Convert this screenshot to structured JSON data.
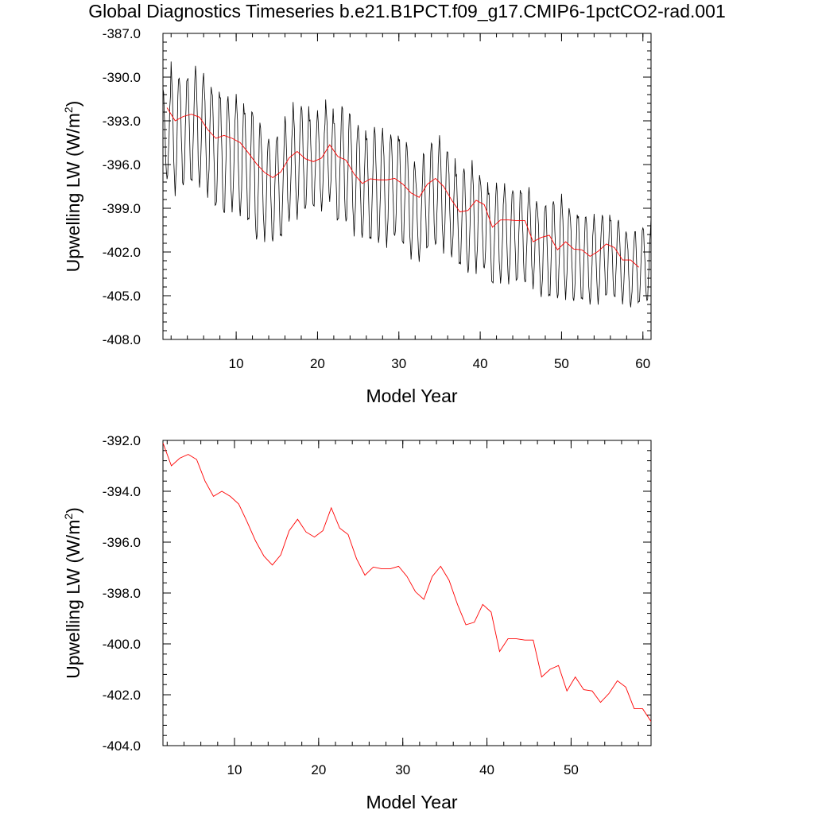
{
  "figure": {
    "title": "Global Diagnostics Timeseries b.e21.B1PCT.f09_g17.CMIP6-1pctCO2-rad.001"
  },
  "colors": {
    "monthly_series": "#000000",
    "annual_series": "#ff0000",
    "frame": "#000000",
    "background": "#ffffff"
  },
  "chart_data": [
    {
      "type": "line",
      "xlabel": "Model Year",
      "ylabel": "Upwelling LW (W/m",
      "ylabel_superscript": "2",
      "ylabel_suffix": ")",
      "xlim": [
        1,
        61
      ],
      "ylim": [
        -408.0,
        -387.0
      ],
      "xticks": [
        10,
        20,
        30,
        40,
        50,
        60
      ],
      "xtick_labels": [
        "10",
        "20",
        "30",
        "40",
        "50",
        "60"
      ],
      "yticks": [
        -408.0,
        -405.0,
        -402.0,
        -399.0,
        -396.0,
        -393.0,
        -390.0,
        -387.0
      ],
      "ytick_labels": [
        "-408.0",
        "-405.0",
        "-402.0",
        "-399.0",
        "-396.0",
        "-393.0",
        "-390.0",
        "-387.0"
      ],
      "grid": false,
      "series": [
        {
          "style": "monthly",
          "color": "#000000",
          "annual_peaks": [
            -390.8,
            -389.3,
            -390.0,
            -389.9,
            -389.4,
            -390.0,
            -390.8,
            -391.2,
            -391.6,
            -391.3,
            -392.2,
            -392.4,
            -393.8,
            -394.2,
            -393.9,
            -392.8,
            -392.0,
            -391.8,
            -392.8,
            -392.5,
            -391.7,
            -392.9,
            -391.9,
            -392.9,
            -393.3,
            -394.0,
            -393.5,
            -393.8,
            -393.8,
            -394.1,
            -395.0,
            -396.5,
            -395.0,
            -394.4,
            -394.3,
            -395.2,
            -396.5,
            -396.3,
            -396.0,
            -397.0,
            -397.8,
            -397.4,
            -397.5,
            -397.6,
            -397.8,
            -397.8,
            -398.9,
            -398.6,
            -398.5,
            -398.3,
            -399.2,
            -399.4,
            -399.7,
            -399.6,
            -399.3,
            -399.7,
            -400.0,
            -400.9,
            -400.4,
            -400.3,
            -399.8
          ],
          "annual_troughs": [
            -397.0,
            -397.8,
            -397.5,
            -397.3,
            -397.4,
            -398.0,
            -399.0,
            -399.5,
            -399.0,
            -399.4,
            -400.0,
            -401.2,
            -401.0,
            -401.3,
            -401.1,
            -399.8,
            -399.5,
            -399.2,
            -399.0,
            -399.0,
            -398.4,
            -400.0,
            -400.0,
            -400.6,
            -401.0,
            -401.3,
            -401.3,
            -401.4,
            -401.0,
            -401.6,
            -402.3,
            -402.5,
            -401.9,
            -401.6,
            -401.8,
            -402.3,
            -403.0,
            -403.4,
            -403.2,
            -403.2,
            -404.3,
            -404.0,
            -404.0,
            -404.1,
            -404.2,
            -404.3,
            -405.0,
            -405.2,
            -405.2,
            -405.0,
            -405.4,
            -405.4,
            -405.5,
            -405.4,
            -405.1,
            -405.2,
            -405.4,
            -405.7,
            -405.6,
            -405.4,
            -403.5
          ]
        },
        {
          "style": "annual",
          "color": "#ff0000",
          "x": [
            1.5,
            2.5,
            3.5,
            4.5,
            5.5,
            6.5,
            7.5,
            8.5,
            9.5,
            10.5,
            11.5,
            12.5,
            13.5,
            14.5,
            15.5,
            16.5,
            17.5,
            18.5,
            19.5,
            20.5,
            21.5,
            22.5,
            23.5,
            24.5,
            25.5,
            26.5,
            27.5,
            28.5,
            29.5,
            30.5,
            31.5,
            32.5,
            33.5,
            34.5,
            35.5,
            36.5,
            37.5,
            38.5,
            39.5,
            40.5,
            41.5,
            42.5,
            43.5,
            44.5,
            45.5,
            46.5,
            47.5,
            48.5,
            49.5,
            50.5,
            51.5,
            52.5,
            53.5,
            54.5,
            55.5,
            56.5,
            57.5,
            58.5,
            59.5
          ],
          "y": [
            -392.1,
            -393.0,
            -392.7,
            -392.55,
            -392.75,
            -393.6,
            -394.2,
            -394.0,
            -394.2,
            -394.5,
            -395.2,
            -395.95,
            -396.55,
            -396.9,
            -396.5,
            -395.55,
            -395.1,
            -395.6,
            -395.8,
            -395.55,
            -394.65,
            -395.45,
            -395.7,
            -396.65,
            -397.3,
            -396.98,
            -397.05,
            -397.05,
            -396.95,
            -397.35,
            -397.95,
            -398.25,
            -397.35,
            -396.95,
            -397.5,
            -398.45,
            -399.25,
            -399.15,
            -398.45,
            -398.75,
            -400.3,
            -399.8,
            -399.8,
            -399.85,
            -399.85,
            -401.3,
            -401.0,
            -400.85,
            -401.85,
            -401.3,
            -401.8,
            -401.85,
            -402.3,
            -401.95,
            -401.45,
            -401.7,
            -402.55,
            -402.55,
            -403.05
          ]
        }
      ]
    },
    {
      "type": "line",
      "xlabel": "Model Year",
      "ylabel": "Upwelling LW (W/m",
      "ylabel_superscript": "2",
      "ylabel_suffix": ")",
      "xlim": [
        1.5,
        59.5
      ],
      "ylim": [
        -404.0,
        -392.0
      ],
      "xticks": [
        10,
        20,
        30,
        40,
        50
      ],
      "xtick_labels": [
        "10",
        "20",
        "30",
        "40",
        "50"
      ],
      "yticks": [
        -404.0,
        -402.0,
        -400.0,
        -398.0,
        -396.0,
        -394.0,
        -392.0
      ],
      "ytick_labels": [
        "-404.0",
        "-402.0",
        "-400.0",
        "-398.0",
        "-396.0",
        "-394.0",
        "-392.0"
      ],
      "grid": false,
      "series": [
        {
          "style": "annual",
          "color": "#ff0000",
          "x": [
            1.5,
            2.5,
            3.5,
            4.5,
            5.5,
            6.5,
            7.5,
            8.5,
            9.5,
            10.5,
            11.5,
            12.5,
            13.5,
            14.5,
            15.5,
            16.5,
            17.5,
            18.5,
            19.5,
            20.5,
            21.5,
            22.5,
            23.5,
            24.5,
            25.5,
            26.5,
            27.5,
            28.5,
            29.5,
            30.5,
            31.5,
            32.5,
            33.5,
            34.5,
            35.5,
            36.5,
            37.5,
            38.5,
            39.5,
            40.5,
            41.5,
            42.5,
            43.5,
            44.5,
            45.5,
            46.5,
            47.5,
            48.5,
            49.5,
            50.5,
            51.5,
            52.5,
            53.5,
            54.5,
            55.5,
            56.5,
            57.5,
            58.5,
            59.5
          ],
          "y": [
            -392.1,
            -393.0,
            -392.7,
            -392.55,
            -392.75,
            -393.6,
            -394.2,
            -394.0,
            -394.2,
            -394.5,
            -395.2,
            -395.95,
            -396.55,
            -396.9,
            -396.5,
            -395.55,
            -395.1,
            -395.6,
            -395.8,
            -395.55,
            -394.65,
            -395.45,
            -395.7,
            -396.65,
            -397.3,
            -396.98,
            -397.05,
            -397.05,
            -396.95,
            -397.35,
            -397.95,
            -398.25,
            -397.35,
            -396.95,
            -397.5,
            -398.45,
            -399.25,
            -399.15,
            -398.45,
            -398.75,
            -400.3,
            -399.8,
            -399.8,
            -399.85,
            -399.85,
            -401.3,
            -401.0,
            -400.85,
            -401.85,
            -401.3,
            -401.8,
            -401.85,
            -402.3,
            -401.95,
            -401.45,
            -401.7,
            -402.55,
            -402.55,
            -403.05
          ]
        }
      ]
    }
  ]
}
